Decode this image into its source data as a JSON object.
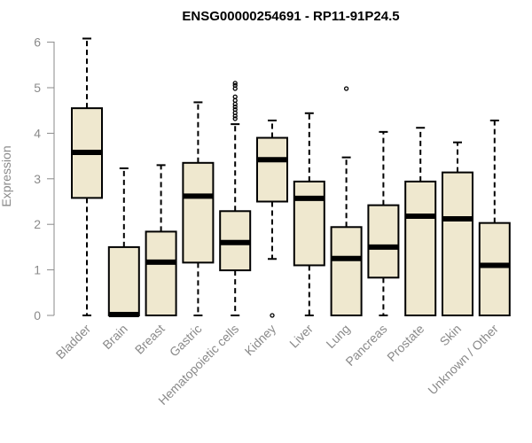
{
  "chart_data": {
    "type": "boxplot",
    "title": "ENSG00000254691 - RP11-91P24.5",
    "xlabel": "",
    "ylabel": "Expression",
    "ylim": [
      0,
      6.2
    ],
    "yticks": [
      0,
      1,
      2,
      3,
      4,
      5,
      6
    ],
    "grid": false,
    "categories": [
      "Bladder",
      "Brain",
      "Breast",
      "Gastric",
      "Hematopoietic cells",
      "Kidney",
      "Liver",
      "Lung",
      "Pancreas",
      "Prostate",
      "Skin",
      "Unknown / Other"
    ],
    "boxes": [
      {
        "name": "Bladder",
        "min": 0,
        "q1": 2.58,
        "median": 3.58,
        "q3": 4.55,
        "max": 6.08,
        "outliers": []
      },
      {
        "name": "Brain",
        "min": 0,
        "q1": 0,
        "median": 0.02,
        "q3": 1.5,
        "max": 3.23,
        "outliers": []
      },
      {
        "name": "Breast",
        "min": 0,
        "q1": 0,
        "median": 1.17,
        "q3": 1.84,
        "max": 3.3,
        "outliers": []
      },
      {
        "name": "Gastric",
        "min": 0,
        "q1": 1.16,
        "median": 2.62,
        "q3": 3.35,
        "max": 4.68,
        "outliers": []
      },
      {
        "name": "Hematopoietic cells",
        "min": 0,
        "q1": 0.99,
        "median": 1.6,
        "q3": 2.29,
        "max": 4.2,
        "outliers": [
          4.32,
          4.38,
          4.45,
          4.52,
          4.58,
          4.64,
          4.72,
          4.8,
          4.98,
          5.05,
          5.1
        ]
      },
      {
        "name": "Kidney",
        "min": 1.24,
        "q1": 2.5,
        "median": 3.42,
        "q3": 3.9,
        "max": 4.28,
        "outliers": [
          0
        ]
      },
      {
        "name": "Liver",
        "min": 0,
        "q1": 1.1,
        "median": 2.57,
        "q3": 2.94,
        "max": 4.44,
        "outliers": []
      },
      {
        "name": "Lung",
        "min": 0,
        "q1": 0,
        "median": 1.25,
        "q3": 1.94,
        "max": 3.47,
        "outliers": [
          4.98
        ]
      },
      {
        "name": "Pancreas",
        "min": 0,
        "q1": 0.83,
        "median": 1.5,
        "q3": 2.42,
        "max": 4.03,
        "outliers": []
      },
      {
        "name": "Prostate",
        "min": 0,
        "q1": 0,
        "median": 2.18,
        "q3": 2.94,
        "max": 4.12,
        "outliers": []
      },
      {
        "name": "Skin",
        "min": 0,
        "q1": 0,
        "median": 2.12,
        "q3": 3.14,
        "max": 3.8,
        "outliers": []
      },
      {
        "name": "Unknown / Other",
        "min": 0,
        "q1": 0,
        "median": 1.1,
        "q3": 2.03,
        "max": 4.28,
        "outliers": []
      }
    ],
    "colors": {
      "box_fill": "#efe8cf",
      "stroke": "#000000",
      "axis": "#8a8a8a"
    }
  }
}
